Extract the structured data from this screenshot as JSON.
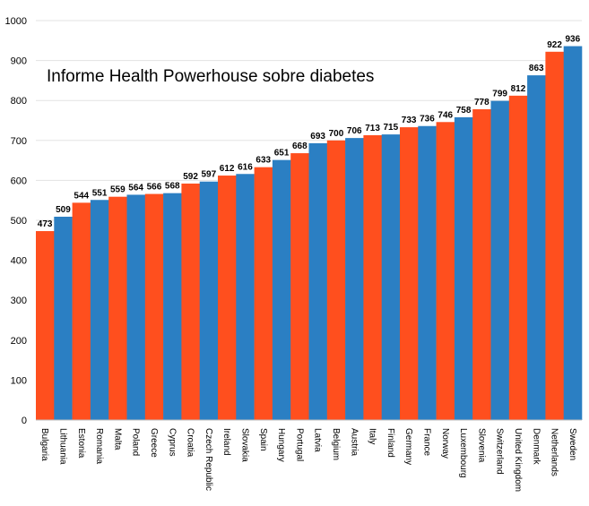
{
  "chart_data": {
    "type": "bar",
    "title": "Informe Health Powerhouse sobre diabetes",
    "xlabel": "",
    "ylabel": "",
    "ylim": [
      0,
      1000
    ],
    "yticks": [
      0,
      100,
      200,
      300,
      400,
      500,
      600,
      700,
      800,
      900,
      1000
    ],
    "grid": true,
    "colors": [
      "#ff4f1e",
      "#2b7fc3"
    ],
    "categories": [
      "Bulgaria",
      "Lithuania",
      "Estonia",
      "Romania",
      "Malta",
      "Poland",
      "Greece",
      "Cyprus",
      "Croatia",
      "Czech Republic",
      "Ireland",
      "Slovakia",
      "Spain",
      "Hungary",
      "Portugal",
      "Latvia",
      "Belgium",
      "Austria",
      "Italy",
      "Finland",
      "Germany",
      "France",
      "Norway",
      "Luxembourg",
      "Slovenia",
      "Switzerland",
      "United Kingdom",
      "Denmark",
      "Netherlands",
      "Sweden"
    ],
    "values": [
      473,
      509,
      544,
      551,
      559,
      564,
      566,
      568,
      592,
      597,
      612,
      616,
      633,
      651,
      668,
      693,
      700,
      706,
      713,
      715,
      733,
      736,
      746,
      758,
      778,
      799,
      812,
      863,
      922,
      936
    ]
  }
}
